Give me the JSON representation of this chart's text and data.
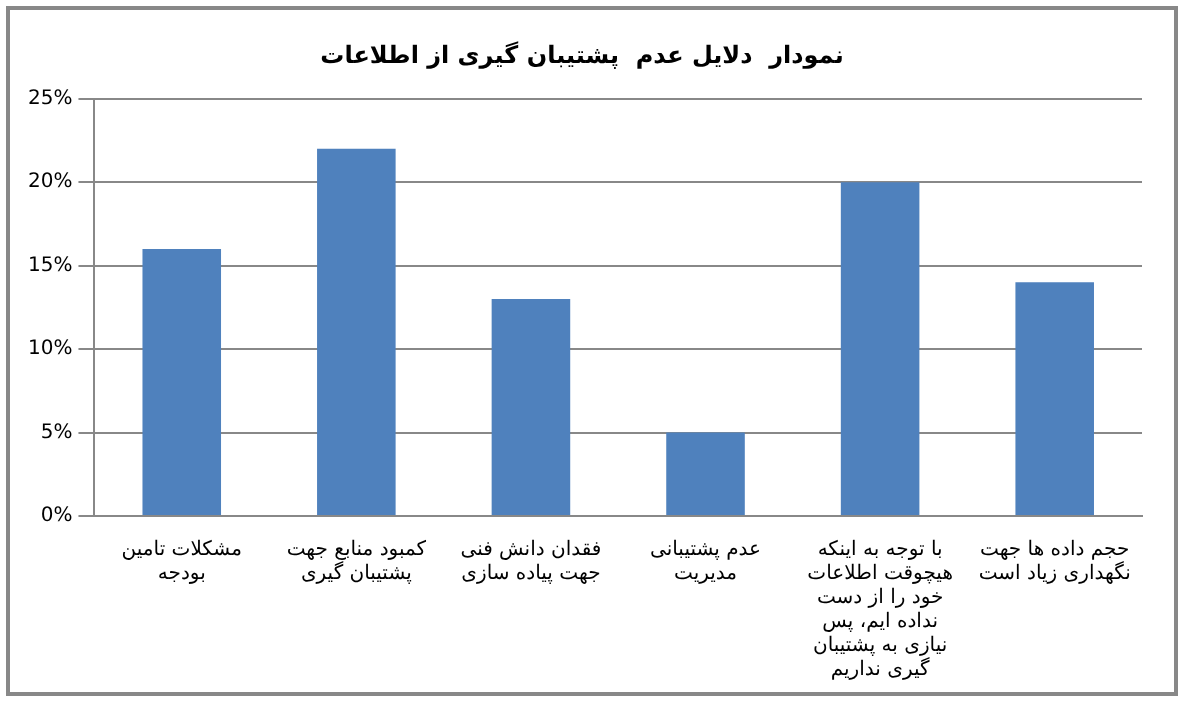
{
  "chart_data": {
    "type": "bar",
    "title": "نمودار  دلایل عدم  پشتیبان گیری از اطلاعات",
    "categories": [
      "مشکلات تامین بودجه",
      "کمبود منابع جهت پشتیبان گیری",
      "فقدان دانش فنی جهت پیاده سازی",
      "عدم پشتیبانی مدیریت",
      "با توجه به اینکه هیچوقت اطلاعات خود را از دست نداده ایم، پس نیازی به پشتیبان گیری نداریم",
      "حجم داده ها جهت نگهداری زیاد است"
    ],
    "values": [
      16,
      22,
      13,
      5,
      20,
      14
    ],
    "color": "#4f81bd",
    "ylim": [
      0,
      25
    ],
    "yticks": [
      {
        "value": 0,
        "label": "0%"
      },
      {
        "value": 5,
        "label": "5%"
      },
      {
        "value": 10,
        "label": "10%"
      },
      {
        "value": 15,
        "label": "15%"
      },
      {
        "value": 20,
        "label": "20%"
      },
      {
        "value": 25,
        "label": "25%"
      }
    ],
    "grid": "y",
    "legend": false
  }
}
